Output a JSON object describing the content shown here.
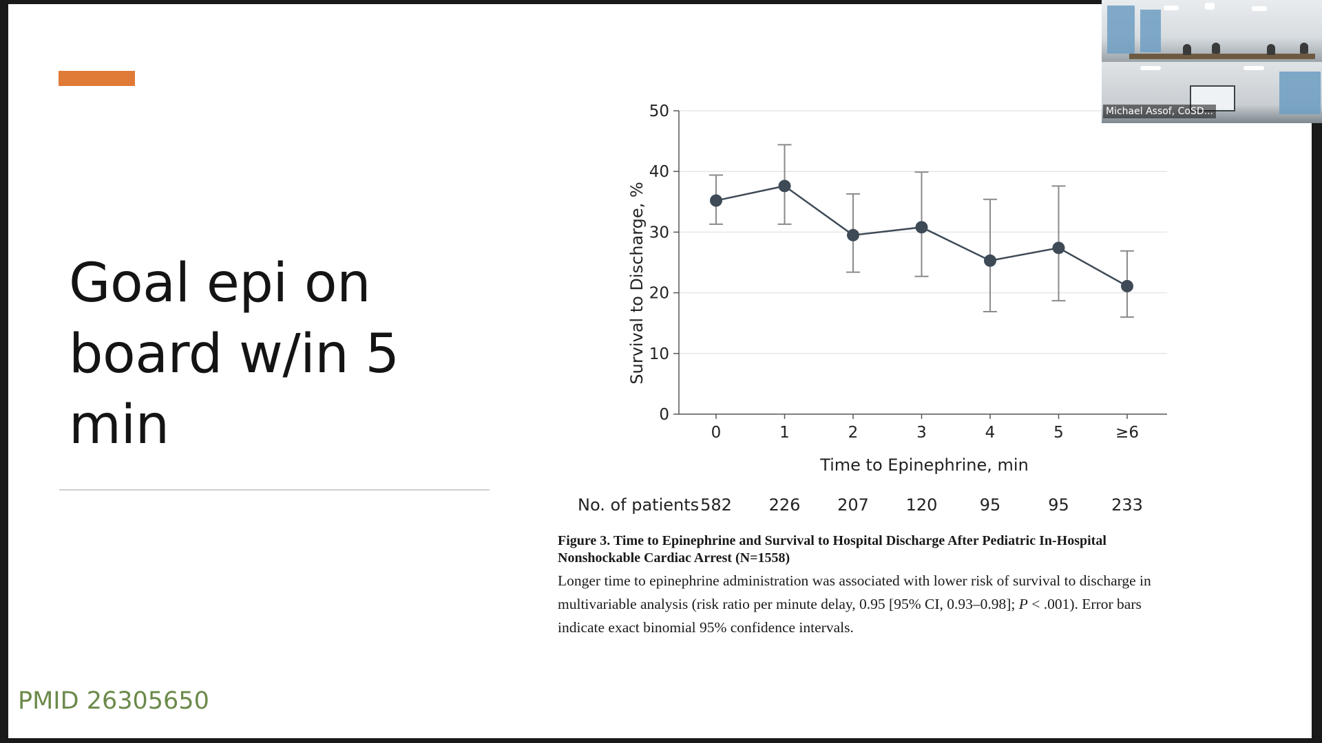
{
  "slide": {
    "title_lines": [
      "Goal epi on",
      "board w/in 5",
      "min"
    ],
    "pmid": "PMID 26305650",
    "accent_color": "#e07a37"
  },
  "chart_data": {
    "type": "line",
    "xlabel": "Time to Epinephrine, min",
    "ylabel": "Survival to Discharge, %",
    "ylim": [
      0,
      50
    ],
    "yticks": [
      0,
      10,
      20,
      30,
      40,
      50
    ],
    "categories": [
      "0",
      "1",
      "2",
      "3",
      "4",
      "5",
      "≥6"
    ],
    "series": [
      {
        "name": "Survival to Discharge",
        "values": [
          35.2,
          37.6,
          29.5,
          30.8,
          25.3,
          27.4,
          21.1
        ],
        "ci_low": [
          31.3,
          31.3,
          23.4,
          22.7,
          16.9,
          18.7,
          16.0
        ],
        "ci_high": [
          39.4,
          44.4,
          36.3,
          39.9,
          35.4,
          37.6,
          26.9
        ]
      }
    ],
    "patients_label": "No. of patients",
    "patients": [
      "582",
      "226",
      "207",
      "120",
      "95",
      "95",
      "233"
    ],
    "grid": true
  },
  "caption": {
    "title": "Figure 3. Time to Epinephrine and Survival to Hospital Discharge After Pediatric In-Hospital Nonshockable Cardiac Arrest (N=1558)",
    "body_part1": "Longer time to epinephrine administration was associated with lower risk of survival to discharge in multivariable analysis (risk ratio per minute delay, 0.95 [95% CI, 0.93–0.98]; ",
    "body_p": "P",
    "body_part2": " < .001). Error bars indicate exact binomial 95% confidence intervals."
  },
  "video": {
    "participant_name": "Michael Assof, CoSD..."
  }
}
